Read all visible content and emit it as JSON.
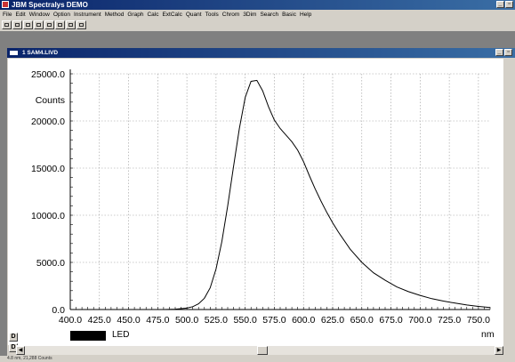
{
  "app": {
    "title": "JBM Spectralys DEMO",
    "min_symbol": "_",
    "max_symbol": "▫"
  },
  "menu": [
    "File",
    "Edit",
    "Window",
    "Option",
    "Instrument",
    "Method",
    "Graph",
    "Calc",
    "ExtCalc",
    "Quant",
    "Tools",
    "Chrom",
    "3Dim",
    "Search",
    "Basic",
    "Help"
  ],
  "child_window": {
    "title": "1 SAM4.LIVD",
    "min_symbol": "_",
    "max_symbol": "▫"
  },
  "plot": {
    "d_button_top": "D",
    "d_button_bottom": "D",
    "legend_label": "LED",
    "x_unit": "nm"
  },
  "status": {
    "text": "4.8 nm, 21,288 Counts"
  },
  "chart_data": {
    "type": "line",
    "ylabel": "Counts",
    "xlabel": "nm",
    "xlim": [
      400.0,
      760.0
    ],
    "ylim": [
      0.0,
      25000.0
    ],
    "grid": true,
    "x_ticks": [
      "400.0",
      "425.0",
      "450.0",
      "475.0",
      "500.0",
      "525.0",
      "550.0",
      "575.0",
      "600.0",
      "625.0",
      "650.0",
      "675.0",
      "700.0",
      "725.0",
      "750.0"
    ],
    "y_ticks": [
      "0.0",
      "5000.0",
      "10000.0",
      "15000.0",
      "20000.0",
      "25000.0"
    ],
    "series": [
      {
        "name": "LED",
        "color": "#000000",
        "x": [
          400,
          420,
          440,
          460,
          480,
          490,
          500,
          505,
          510,
          515,
          520,
          525,
          530,
          535,
          540,
          545,
          550,
          555,
          560,
          565,
          570,
          575,
          580,
          585,
          590,
          595,
          600,
          605,
          610,
          615,
          620,
          625,
          630,
          640,
          650,
          660,
          670,
          680,
          690,
          700,
          710,
          720,
          730,
          740,
          750,
          760
        ],
        "y": [
          0,
          0,
          0,
          0,
          0,
          40,
          150,
          300,
          600,
          1200,
          2300,
          4300,
          7200,
          11000,
          15200,
          19200,
          22500,
          24200,
          24300,
          23200,
          21500,
          20100,
          19200,
          18500,
          17800,
          16900,
          15700,
          14200,
          12800,
          11500,
          10300,
          9200,
          8200,
          6400,
          5000,
          3900,
          3100,
          2400,
          1900,
          1500,
          1150,
          900,
          680,
          480,
          330,
          220
        ]
      }
    ]
  }
}
